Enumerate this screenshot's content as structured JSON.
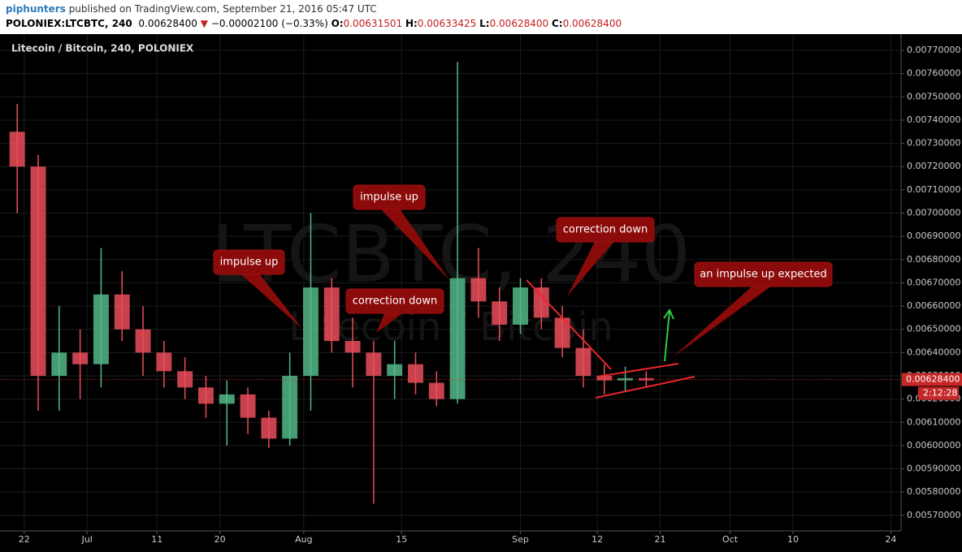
{
  "chart_data": {
    "type": "candlestick",
    "header": {
      "author": "piphunters",
      "published": "published on TradingView.com, September 21, 2016 05:47 UTC",
      "symbol": "POLONIEX:LTCBTC, 240",
      "last": "0.00628400",
      "arrow": "▼",
      "change": "−0.00002100 (−0.33%)",
      "o_label": "O:",
      "o_value": "0.00631501",
      "h_label": "H:",
      "h_value": "0.00633425",
      "l_label": "L:",
      "l_value": "0.00628400",
      "c_label": "C:",
      "c_value": "0.00628400"
    },
    "title": "Litecoin / Bitcoin, 240, POLONIEX",
    "watermark": "LTCBTC, 240",
    "watermark_sub": "Litecoin / Bitcoin",
    "x": [
      "2016-06-21",
      "2016-06-24",
      "2016-06-27",
      "2016-06-30",
      "2016-07-03",
      "2016-07-06",
      "2016-07-09",
      "2016-07-12",
      "2016-07-15",
      "2016-07-18",
      "2016-07-21",
      "2016-07-24",
      "2016-07-27",
      "2016-07-30",
      "2016-08-02",
      "2016-08-05",
      "2016-08-08",
      "2016-08-11",
      "2016-08-14",
      "2016-08-17",
      "2016-08-20",
      "2016-08-23",
      "2016-08-26",
      "2016-08-29",
      "2016-09-01",
      "2016-09-04",
      "2016-09-07",
      "2016-09-10",
      "2016-09-13",
      "2016-09-16",
      "2016-09-19"
    ],
    "open": [
      0.00735,
      0.0072,
      0.0063,
      0.0064,
      0.00635,
      0.00665,
      0.0065,
      0.0064,
      0.00632,
      0.00625,
      0.00618,
      0.00622,
      0.00612,
      0.00603,
      0.0063,
      0.00668,
      0.00645,
      0.0064,
      0.0063,
      0.00635,
      0.00627,
      0.0062,
      0.00672,
      0.00662,
      0.00652,
      0.00668,
      0.00655,
      0.00642,
      0.0063,
      0.00628,
      0.00629
    ],
    "high": [
      0.00747,
      0.00725,
      0.0066,
      0.0065,
      0.00685,
      0.00675,
      0.0066,
      0.00645,
      0.00638,
      0.0063,
      0.00628,
      0.00625,
      0.00615,
      0.0064,
      0.007,
      0.00672,
      0.00655,
      0.00645,
      0.00645,
      0.0064,
      0.00632,
      0.00765,
      0.00685,
      0.00668,
      0.00672,
      0.00672,
      0.0066,
      0.0065,
      0.00635,
      0.00634,
      0.00632
    ],
    "low": [
      0.007,
      0.00615,
      0.00615,
      0.0062,
      0.00625,
      0.00645,
      0.0063,
      0.00625,
      0.0062,
      0.00612,
      0.006,
      0.00605,
      0.00599,
      0.006,
      0.00615,
      0.0064,
      0.00625,
      0.00575,
      0.0062,
      0.00622,
      0.00617,
      0.00618,
      0.00655,
      0.00645,
      0.00648,
      0.0065,
      0.00638,
      0.00625,
      0.00622,
      0.00623,
      0.00625
    ],
    "close": [
      0.0072,
      0.0063,
      0.0064,
      0.00635,
      0.00665,
      0.0065,
      0.0064,
      0.00632,
      0.00625,
      0.00618,
      0.00622,
      0.00612,
      0.00603,
      0.0063,
      0.00668,
      0.00645,
      0.0064,
      0.0063,
      0.00635,
      0.00627,
      0.0062,
      0.00672,
      0.00662,
      0.00652,
      0.00668,
      0.00655,
      0.00642,
      0.0063,
      0.00628,
      0.00629,
      0.00628
    ],
    "up_color": "#53b987",
    "down_color": "#eb4d5c",
    "xlim": [
      "2016-06-19",
      "2016-10-25"
    ],
    "xticks": [
      {
        "value": "2016-06-22",
        "label": "22"
      },
      {
        "value": "2016-07-01",
        "label": "Jul"
      },
      {
        "value": "2016-07-11",
        "label": "11"
      },
      {
        "value": "2016-07-20",
        "label": "20"
      },
      {
        "value": "2016-08-01",
        "label": "Aug"
      },
      {
        "value": "2016-08-15",
        "label": "15"
      },
      {
        "value": "2016-09-01",
        "label": "Sep"
      },
      {
        "value": "2016-09-12",
        "label": "12"
      },
      {
        "value": "2016-09-21",
        "label": "21"
      },
      {
        "value": "2016-10-01",
        "label": "Oct"
      },
      {
        "value": "2016-10-10",
        "label": "10"
      },
      {
        "value": "2016-10-24",
        "label": "24"
      }
    ],
    "ylim": [
      0.00564,
      0.00775
    ],
    "yticks": [
      {
        "value": 0.0057,
        "label": "0.00570000"
      },
      {
        "value": 0.0058,
        "label": "0.00580000"
      },
      {
        "value": 0.0059,
        "label": "0.00590000"
      },
      {
        "value": 0.006,
        "label": "0.00600000"
      },
      {
        "value": 0.0061,
        "label": "0.00610000"
      },
      {
        "value": 0.0062,
        "label": "0.00620000"
      },
      {
        "value": 0.0063,
        "label": "0.00630000"
      },
      {
        "value": 0.0064,
        "label": "0.00640000"
      },
      {
        "value": 0.0065,
        "label": "0.00650000"
      },
      {
        "value": 0.0066,
        "label": "0.00660000"
      },
      {
        "value": 0.0067,
        "label": "0.00670000"
      },
      {
        "value": 0.0068,
        "label": "0.00680000"
      },
      {
        "value": 0.0069,
        "label": "0.00690000"
      },
      {
        "value": 0.007,
        "label": "0.00700000"
      },
      {
        "value": 0.0071,
        "label": "0.00710000"
      },
      {
        "value": 0.0072,
        "label": "0.00720000"
      },
      {
        "value": 0.0073,
        "label": "0.00730000"
      },
      {
        "value": 0.0074,
        "label": "0.00740000"
      },
      {
        "value": 0.0075,
        "label": "0.00750000"
      },
      {
        "value": 0.0076,
        "label": "0.00760000"
      },
      {
        "value": 0.0077,
        "label": "0.00770000"
      }
    ],
    "grid": true,
    "price_line": {
      "value": 0.006284,
      "label": "0.00628400"
    },
    "countdown": "2:12:28",
    "annotations": [
      "impulse up",
      "impulse up",
      "correction down",
      "correction down",
      "an impulse up expected"
    ]
  }
}
